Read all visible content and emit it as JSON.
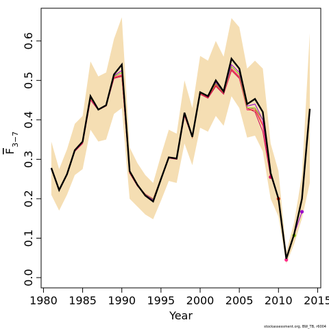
{
  "chart_data": {
    "type": "line",
    "x_label": "Year",
    "y_label": "F",
    "y_label_subscript": "3−7",
    "footer": "stockassessment.org, BW_TB, r6004",
    "x": [
      1981,
      1982,
      1983,
      1984,
      1985,
      1986,
      1987,
      1988,
      1989,
      1990,
      1991,
      1992,
      1993,
      1994,
      1995,
      1996,
      1997,
      1998,
      1999,
      2000,
      2001,
      2002,
      2003,
      2004,
      2005,
      2006,
      2007,
      2008,
      2009,
      2010,
      2011,
      2012,
      2013,
      2014
    ],
    "band": {
      "color": "#f5deb3",
      "upper": [
        0.345,
        0.275,
        0.325,
        0.39,
        0.41,
        0.548,
        0.51,
        0.52,
        0.605,
        0.66,
        0.33,
        0.29,
        0.26,
        0.24,
        0.31,
        0.375,
        0.365,
        0.5,
        0.43,
        0.562,
        0.55,
        0.6,
        0.56,
        0.658,
        0.635,
        0.53,
        0.55,
        0.53,
        0.34,
        0.27,
        0.065,
        0.14,
        0.26,
        0.62
      ],
      "lower": [
        0.21,
        0.17,
        0.21,
        0.26,
        0.275,
        0.375,
        0.345,
        0.35,
        0.415,
        0.43,
        0.2,
        0.18,
        0.16,
        0.148,
        0.195,
        0.245,
        0.24,
        0.34,
        0.285,
        0.38,
        0.37,
        0.41,
        0.385,
        0.46,
        0.43,
        0.355,
        0.36,
        0.32,
        0.2,
        0.155,
        0.035,
        0.085,
        0.15,
        0.24
      ]
    },
    "series": [
      {
        "color": "#c8005a",
        "end_marker": true,
        "values": [
          0.275,
          0.22,
          0.26,
          0.32,
          0.34,
          0.45,
          0.425,
          0.435,
          0.505,
          0.51,
          0.265,
          0.232,
          0.21,
          0.198,
          0.25,
          0.303,
          0.3,
          0.41,
          0.355,
          0.465,
          0.455,
          0.485,
          0.465,
          0.525,
          0.505,
          0.43,
          0.42,
          0.37,
          0.255,
          null,
          null,
          null,
          null,
          null
        ]
      },
      {
        "color": "#e8311a",
        "end_marker": true,
        "values": [
          0.276,
          0.221,
          0.261,
          0.321,
          0.342,
          0.452,
          0.426,
          0.436,
          0.507,
          0.512,
          0.266,
          0.233,
          0.211,
          0.199,
          0.251,
          0.304,
          0.301,
          0.412,
          0.356,
          0.466,
          0.457,
          0.488,
          0.467,
          0.528,
          0.508,
          0.425,
          0.425,
          0.385,
          0.26,
          0.2,
          null,
          null,
          null,
          null
        ]
      },
      {
        "color": "#ff2a8a",
        "end_marker": true,
        "values": [
          0.276,
          0.221,
          0.261,
          0.321,
          0.342,
          0.452,
          0.426,
          0.436,
          0.508,
          0.515,
          0.267,
          0.234,
          0.212,
          0.2,
          0.252,
          0.305,
          0.302,
          0.413,
          0.357,
          0.467,
          0.458,
          0.49,
          0.468,
          0.53,
          0.51,
          0.425,
          0.43,
          0.39,
          0.26,
          0.2,
          0.045,
          null,
          null,
          null
        ]
      },
      {
        "color": "#7fc800",
        "end_marker": true,
        "values": [
          0.277,
          0.222,
          0.262,
          0.322,
          0.343,
          0.455,
          0.427,
          0.437,
          0.51,
          0.52,
          0.268,
          0.234,
          0.211,
          0.199,
          0.252,
          0.305,
          0.302,
          0.414,
          0.357,
          0.468,
          0.459,
          0.492,
          0.469,
          0.535,
          0.515,
          0.43,
          0.43,
          0.4,
          0.262,
          0.2,
          0.048,
          0.107,
          null,
          null
        ]
      },
      {
        "color": "#9900cc",
        "end_marker": true,
        "values": [
          0.277,
          0.222,
          0.262,
          0.322,
          0.344,
          0.457,
          0.427,
          0.437,
          0.512,
          0.525,
          0.269,
          0.234,
          0.21,
          0.197,
          0.251,
          0.305,
          0.302,
          0.416,
          0.357,
          0.469,
          0.46,
          0.495,
          0.47,
          0.54,
          0.52,
          0.435,
          0.44,
          0.4,
          0.263,
          0.2,
          0.05,
          0.11,
          0.167,
          null
        ]
      },
      {
        "color": "#000000",
        "end_marker": false,
        "main": true,
        "values": [
          0.278,
          0.222,
          0.262,
          0.323,
          0.345,
          0.46,
          0.426,
          0.437,
          0.515,
          0.54,
          0.27,
          0.235,
          0.208,
          0.193,
          0.25,
          0.305,
          0.302,
          0.418,
          0.357,
          0.47,
          0.46,
          0.5,
          0.472,
          0.555,
          0.53,
          0.44,
          0.453,
          0.42,
          0.265,
          0.2,
          0.048,
          0.11,
          0.2,
          0.428
        ]
      }
    ],
    "xlim": [
      1979.7,
      2015.4
    ],
    "ylim": [
      -0.026,
      0.683
    ],
    "xticks": [
      1980,
      1985,
      1990,
      1995,
      2000,
      2005,
      2010,
      2015
    ],
    "yticks": [
      {
        "value": 0,
        "label": "0.0"
      },
      0.1,
      0.2,
      0.3,
      0.4,
      0.5,
      0.6
    ]
  }
}
